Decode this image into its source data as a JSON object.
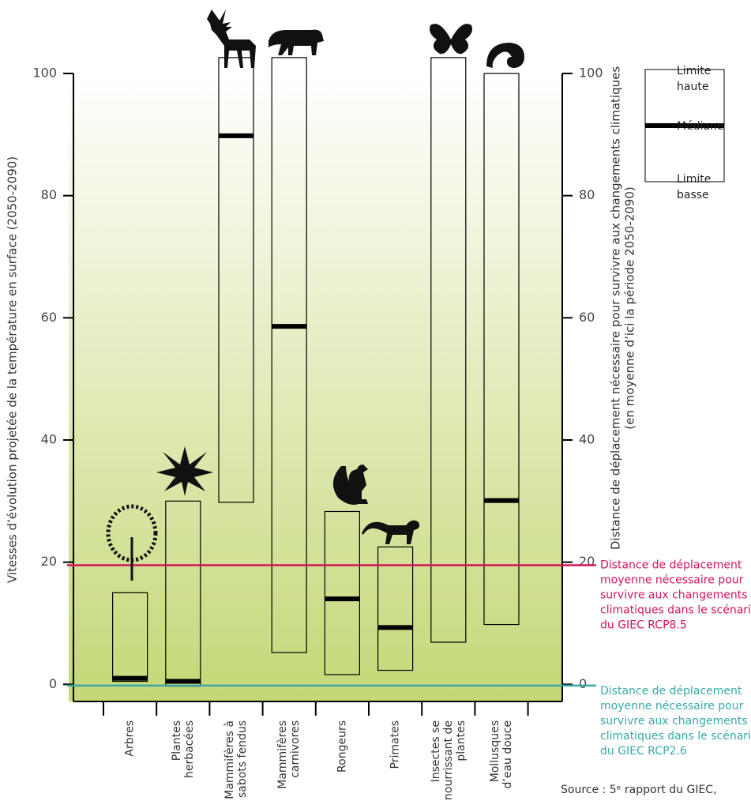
{
  "chart_data": {
    "type": "range",
    "y_label": "Vitesses d’évolution projetée de la température en surface (2050-2090)",
    "y2_label": [
      "Distance de déplacement nécessaire pour survivre aux changements climatiques",
      "(en moyenne d’ici la période 2050-2090)"
    ],
    "categories": [
      [
        "Arbres"
      ],
      [
        "Plantes",
        "herbacées"
      ],
      [
        "Mammifères à",
        "sabots fendus"
      ],
      [
        "Mammifères",
        "carnivores"
      ],
      [
        "Rongeurs"
      ],
      [
        "Primates"
      ],
      [
        "Insectes se",
        "nourrissant de",
        "plantes"
      ],
      [
        "Mollusques",
        "d’eau douce"
      ]
    ],
    "low": [
      0.5,
      -0.3,
      29.8,
      5.2,
      1.6,
      2.3,
      6.9,
      9.8
    ],
    "median": [
      1.0,
      0.5,
      89.8,
      58.6,
      14.0,
      9.3,
      null,
      30.1
    ],
    "high": [
      15.0,
      30.0,
      102.6,
      102.6,
      28.3,
      22.5,
      102.6,
      100
    ],
    "color": "#000000",
    "ylim": [
      -2.8,
      100
    ],
    "yticks": [
      0,
      20,
      40,
      60,
      80,
      100
    ],
    "y2lim": [
      -2.8,
      100
    ],
    "y2ticks": [
      0,
      20,
      40,
      60,
      80,
      100
    ],
    "reference_lines": [
      {
        "value": 19.5,
        "color": "#d4145a",
        "label": [
          "Distance de déplacement",
          "moyenne nécessaire pour",
          "survivre aux changements",
          "climatiques dans le scénario",
          "du GIEC RCP8.5"
        ]
      },
      {
        "value": -0.2,
        "color": "#3aa7a7",
        "label": [
          "Distance de déplacement",
          "moyenne nécessaire pour",
          "survivre aux changements",
          "climatiques dans le scénario",
          "du GIEC RCP2.6"
        ]
      }
    ],
    "legend": {
      "high": [
        "Limite",
        "haute"
      ],
      "median": "Médiane",
      "low": [
        "Limite",
        "basse"
      ]
    },
    "source": "Source : 5ᵉ rapport du GIEC,"
  }
}
